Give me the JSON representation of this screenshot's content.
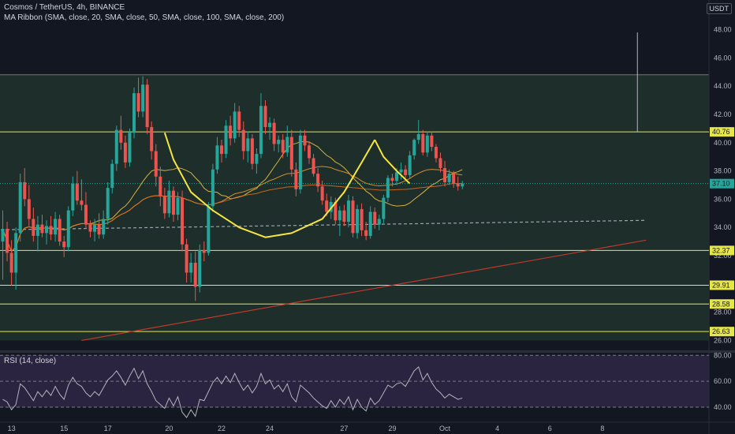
{
  "header": {
    "title": "Cosmos / TetherUS, 4h, BINANCE",
    "indicator": "MA Ribbon (SMA, close, 20, SMA, close, 50, SMA, close, 100, SMA, close, 200)",
    "currency": "USDT"
  },
  "rsi_panel": {
    "label": "RSI (14, close)"
  },
  "colors": {
    "background": "#131722",
    "zone_fill": "#1e2e2a",
    "up_candle": "#26a69a",
    "down_candle": "#ef5350",
    "level_line": "#e6e64a",
    "pattern": "#f5e642",
    "ma20": "#f7c948",
    "ma50": "#f0a030",
    "ma100": "#e07020",
    "ma200": "#c0392b",
    "rsi_line": "#b2b5be",
    "rsi_band": "#2a2440"
  },
  "chart_data": {
    "type": "candlestick",
    "title": "Cosmos / TetherUS, 4h, BINANCE",
    "y_ticks": [
      "26.00",
      "28.00",
      "30.00",
      "32.00",
      "34.00",
      "36.00",
      "38.00",
      "40.00",
      "42.00",
      "44.00",
      "46.00",
      "48.00"
    ],
    "ylim": [
      25.3,
      49.2
    ],
    "x_ticks": [
      "13",
      "15",
      "17",
      "20",
      "22",
      "24",
      "27",
      "29",
      "Oct",
      "4",
      "6",
      "8"
    ],
    "horizontal_levels": [
      {
        "value": 40.76,
        "label": "40.76",
        "highlight": true
      },
      {
        "value": 32.37,
        "label": "32.37",
        "highlight": true
      },
      {
        "value": 29.91,
        "label": "29.91",
        "highlight": true
      },
      {
        "value": 28.58,
        "label": "28.58",
        "highlight": true
      },
      {
        "value": 26.63,
        "label": "26.63",
        "highlight": true
      }
    ],
    "zone": {
      "top": 44.8,
      "bottom": 26.0
    },
    "last_price": {
      "value": 37.1,
      "label": "37.10"
    },
    "measure_line": {
      "from": 40.76,
      "to": 47.8,
      "bar": 145
    },
    "cup_pattern": {
      "cup": [
        [
          37,
          40.7
        ],
        [
          39,
          38.8
        ],
        [
          43,
          36.5
        ],
        [
          48,
          35.2
        ],
        [
          54,
          34.0
        ],
        [
          60,
          33.3
        ],
        [
          66,
          33.6
        ],
        [
          73,
          34.6
        ],
        [
          78,
          36.5
        ],
        [
          82,
          38.6
        ],
        [
          85,
          40.2
        ]
      ],
      "handle": [
        [
          85,
          40.2
        ],
        [
          87,
          39.0
        ],
        [
          90,
          38.0
        ],
        [
          93,
          37.1
        ]
      ]
    },
    "trendlines": [
      {
        "name": "dashed-support",
        "style": "dashed",
        "points": [
          [
            -8,
            33.8
          ],
          [
            147,
            34.5
          ]
        ]
      },
      {
        "name": "rising-red",
        "style": "solid",
        "points": [
          [
            18,
            26.0
          ],
          [
            147,
            33.1
          ]
        ]
      }
    ],
    "candles": [
      [
        33.0,
        35.2,
        30.3,
        33.9
      ],
      [
        33.9,
        34.4,
        31.6,
        32.2
      ],
      [
        32.2,
        33.1,
        29.9,
        30.8
      ],
      [
        30.8,
        34.0,
        29.6,
        33.6
      ],
      [
        33.6,
        37.8,
        33.0,
        37.2
      ],
      [
        37.2,
        38.2,
        35.5,
        36.0
      ],
      [
        36.0,
        37.0,
        34.1,
        34.6
      ],
      [
        34.6,
        35.4,
        33.0,
        33.4
      ],
      [
        33.4,
        34.8,
        32.3,
        34.2
      ],
      [
        34.2,
        34.9,
        33.3,
        33.6
      ],
      [
        33.6,
        34.5,
        32.8,
        34.1
      ],
      [
        34.1,
        34.8,
        33.1,
        33.5
      ],
      [
        33.5,
        35.1,
        33.0,
        34.6
      ],
      [
        34.6,
        34.9,
        32.7,
        33.0
      ],
      [
        33.0,
        33.4,
        31.9,
        32.6
      ],
      [
        32.6,
        35.5,
        32.3,
        35.2
      ],
      [
        35.2,
        37.6,
        34.8,
        37.1
      ],
      [
        37.1,
        38.0,
        35.6,
        35.9
      ],
      [
        35.9,
        37.4,
        35.2,
        35.6
      ],
      [
        35.6,
        36.5,
        33.9,
        34.2
      ],
      [
        34.2,
        34.5,
        33.3,
        33.7
      ],
      [
        33.7,
        34.6,
        33.0,
        34.2
      ],
      [
        34.2,
        35.0,
        33.2,
        33.5
      ],
      [
        33.5,
        35.2,
        33.2,
        34.6
      ],
      [
        34.6,
        37.2,
        34.2,
        36.8
      ],
      [
        36.8,
        38.8,
        36.4,
        38.5
      ],
      [
        38.5,
        41.2,
        38.0,
        40.9
      ],
      [
        40.9,
        41.9,
        39.5,
        40.0
      ],
      [
        40.0,
        40.5,
        38.2,
        38.6
      ],
      [
        38.6,
        41.0,
        38.3,
        40.7
      ],
      [
        40.7,
        43.9,
        40.3,
        43.5
      ],
      [
        43.5,
        44.6,
        41.8,
        42.2
      ],
      [
        42.2,
        44.7,
        41.8,
        44.1
      ],
      [
        44.1,
        44.5,
        40.6,
        41.1
      ],
      [
        41.1,
        41.5,
        38.8,
        39.4
      ],
      [
        39.4,
        39.9,
        36.9,
        37.6
      ],
      [
        37.6,
        38.3,
        35.5,
        36.2
      ],
      [
        36.2,
        36.8,
        34.6,
        35.0
      ],
      [
        35.0,
        37.3,
        34.7,
        36.6
      ],
      [
        36.6,
        36.9,
        34.4,
        34.9
      ],
      [
        34.9,
        36.5,
        34.5,
        36.1
      ],
      [
        36.1,
        36.6,
        32.3,
        32.8
      ],
      [
        32.8,
        33.2,
        30.1,
        30.8
      ],
      [
        30.8,
        32.2,
        30.1,
        31.5
      ],
      [
        31.5,
        32.3,
        28.8,
        29.8
      ],
      [
        29.8,
        32.8,
        29.4,
        32.4
      ],
      [
        32.4,
        33.0,
        31.6,
        32.2
      ],
      [
        32.2,
        35.8,
        32.0,
        35.5
      ],
      [
        35.5,
        38.5,
        35.1,
        38.1
      ],
      [
        38.1,
        40.4,
        37.8,
        39.8
      ],
      [
        39.8,
        40.2,
        38.6,
        39.2
      ],
      [
        39.2,
        41.6,
        38.9,
        41.2
      ],
      [
        41.2,
        41.9,
        39.8,
        40.3
      ],
      [
        40.3,
        42.8,
        40.0,
        42.2
      ],
      [
        42.2,
        42.6,
        40.4,
        40.9
      ],
      [
        40.9,
        41.5,
        38.8,
        39.4
      ],
      [
        39.4,
        40.8,
        38.6,
        40.3
      ],
      [
        40.3,
        40.6,
        38.1,
        38.5
      ],
      [
        38.5,
        39.6,
        37.8,
        39.2
      ],
      [
        39.2,
        43.5,
        38.9,
        42.6
      ],
      [
        42.6,
        43.0,
        40.6,
        41.1
      ],
      [
        41.1,
        41.8,
        40.2,
        41.4
      ],
      [
        41.4,
        41.7,
        39.4,
        39.9
      ],
      [
        39.9,
        40.5,
        39.3,
        40.2
      ],
      [
        40.2,
        40.6,
        38.9,
        39.3
      ],
      [
        39.3,
        41.2,
        39.0,
        40.4
      ],
      [
        40.4,
        40.9,
        37.6,
        38.1
      ],
      [
        38.1,
        38.6,
        36.2,
        36.7
      ],
      [
        36.7,
        40.9,
        36.4,
        40.5
      ],
      [
        40.5,
        40.9,
        39.4,
        39.8
      ],
      [
        39.8,
        40.1,
        38.5,
        38.9
      ],
      [
        38.9,
        39.2,
        37.6,
        37.8
      ],
      [
        37.8,
        38.2,
        36.5,
        36.9
      ],
      [
        36.9,
        37.3,
        35.6,
        35.9
      ],
      [
        35.9,
        36.4,
        34.8,
        35.1
      ],
      [
        35.1,
        36.2,
        34.6,
        35.8
      ],
      [
        35.8,
        36.1,
        34.2,
        34.5
      ],
      [
        34.5,
        35.5,
        33.4,
        35.2
      ],
      [
        35.2,
        35.6,
        34.1,
        34.4
      ],
      [
        34.4,
        36.3,
        34.0,
        35.9
      ],
      [
        35.9,
        36.2,
        33.3,
        33.6
      ],
      [
        33.6,
        35.6,
        33.2,
        35.3
      ],
      [
        35.3,
        35.7,
        33.4,
        33.8
      ],
      [
        33.8,
        34.4,
        33.1,
        33.4
      ],
      [
        33.4,
        35.5,
        33.2,
        35.1
      ],
      [
        35.1,
        35.4,
        33.9,
        34.2
      ],
      [
        34.2,
        34.9,
        33.8,
        34.6
      ],
      [
        34.6,
        36.3,
        34.3,
        36.1
      ],
      [
        36.1,
        37.7,
        35.8,
        37.5
      ],
      [
        37.5,
        37.8,
        36.9,
        37.3
      ],
      [
        37.3,
        38.2,
        37.0,
        37.9
      ],
      [
        37.9,
        38.6,
        37.4,
        38.1
      ],
      [
        38.1,
        38.4,
        37.5,
        37.7
      ],
      [
        37.7,
        39.4,
        37.5,
        39.1
      ],
      [
        39.1,
        40.3,
        38.8,
        40.2
      ],
      [
        40.2,
        41.6,
        39.9,
        40.6
      ],
      [
        40.6,
        40.9,
        39.1,
        39.3
      ],
      [
        39.3,
        40.8,
        39.0,
        40.5
      ],
      [
        40.5,
        40.8,
        39.4,
        39.7
      ],
      [
        39.7,
        39.9,
        38.6,
        38.9
      ],
      [
        38.9,
        39.3,
        37.9,
        38.2
      ],
      [
        38.2,
        38.7,
        36.9,
        37.2
      ],
      [
        37.2,
        38.1,
        37.0,
        37.8
      ],
      [
        37.8,
        38.0,
        36.8,
        37.1
      ],
      [
        37.1,
        37.6,
        36.6,
        36.9
      ],
      [
        36.9,
        37.3,
        36.7,
        37.1
      ]
    ],
    "rsi": {
      "levels": [
        {
          "value": 80,
          "label": "80.00"
        },
        {
          "value": 60,
          "label": "60.00"
        },
        {
          "value": 40,
          "label": "40.00"
        }
      ],
      "ylim": [
        29,
        82
      ],
      "values": [
        46,
        44,
        38,
        42,
        58,
        55,
        50,
        45,
        52,
        48,
        53,
        49,
        56,
        50,
        46,
        57,
        63,
        58,
        56,
        51,
        48,
        52,
        49,
        55,
        61,
        64,
        68,
        63,
        57,
        64,
        70,
        62,
        68,
        58,
        52,
        45,
        42,
        39,
        47,
        41,
        48,
        36,
        32,
        38,
        33,
        46,
        45,
        52,
        59,
        63,
        58,
        64,
        59,
        66,
        59,
        53,
        57,
        51,
        56,
        66,
        58,
        61,
        54,
        57,
        52,
        58,
        48,
        44,
        57,
        54,
        51,
        47,
        44,
        41,
        39,
        45,
        40,
        46,
        42,
        48,
        38,
        46,
        40,
        37,
        47,
        42,
        45,
        51,
        57,
        55,
        58,
        59,
        56,
        62,
        68,
        71,
        61,
        66,
        59,
        54,
        51,
        47,
        50,
        48,
        46,
        47
      ]
    }
  }
}
